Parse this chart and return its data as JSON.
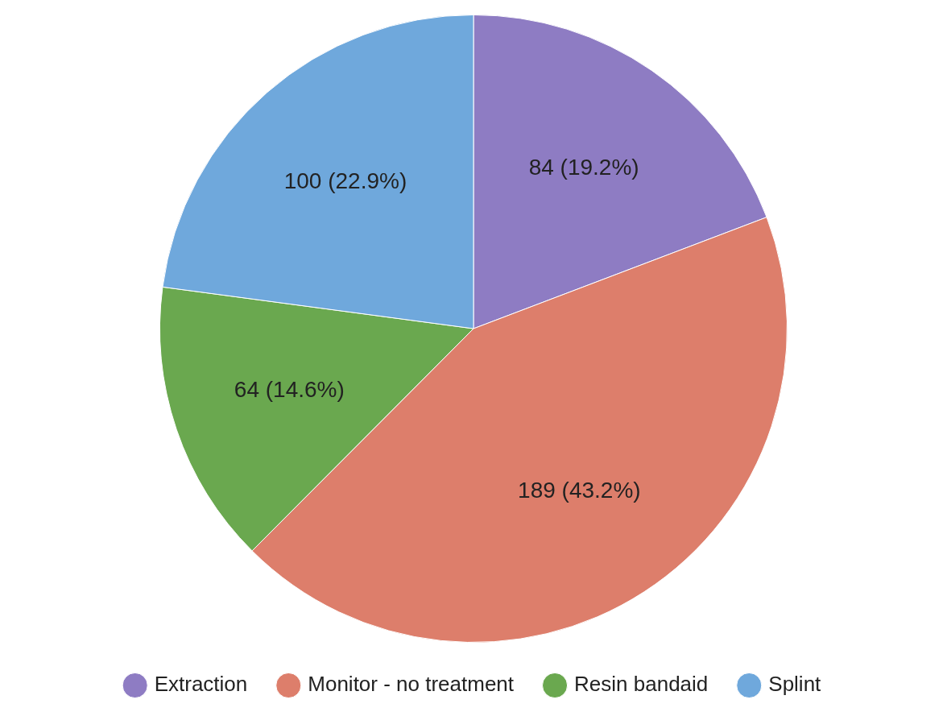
{
  "chart_data": {
    "type": "pie",
    "categories": [
      "Extraction",
      "Monitor - no treatment",
      "Resin bandaid",
      "Splint"
    ],
    "values": [
      84,
      189,
      64,
      100
    ],
    "colors": [
      "#8e7cc3",
      "#dd7e6b",
      "#6aa84f",
      "#6fa8dc"
    ],
    "value_labels": [
      "84 (19.2%)",
      "189 (43.2%)",
      "64 (14.6%)",
      "100 (22.9%)"
    ],
    "legend": "bottom"
  }
}
